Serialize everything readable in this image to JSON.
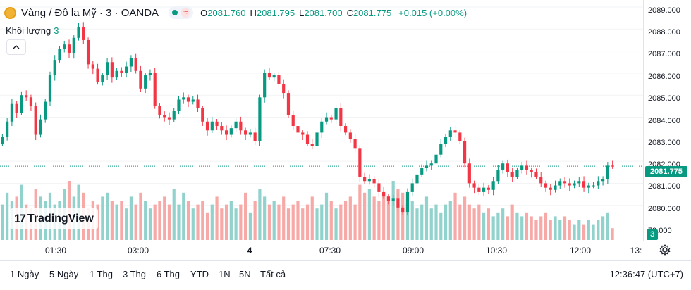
{
  "header": {
    "symbol_title": "Vàng / Đô la Mỹ · 3 · OANDA",
    "market_approx_symbol": "≈",
    "ohlc": [
      {
        "k": "O",
        "v": "2081.760"
      },
      {
        "k": "H",
        "v": "2081.795"
      },
      {
        "k": "L",
        "v": "2081.700"
      },
      {
        "k": "C",
        "v": "2081.775"
      }
    ],
    "change": "+0.015 (+0.00%)"
  },
  "volume_label": {
    "name": "Khối lượng",
    "value": "3"
  },
  "collapse_icon": "chevron-up-icon",
  "logo": {
    "mark": "17",
    "text": "TradingView"
  },
  "price_axis": {
    "ticks": [
      "2089.000",
      "2088.000",
      "2087.000",
      "2086.000",
      "2085.000",
      "2084.000",
      "2083.000",
      "2082.000",
      "2081.000",
      "2080.000",
      "79.000"
    ],
    "current_price": "2081.775",
    "volume_value": "3"
  },
  "time_axis": {
    "ticks": [
      {
        "label": "01:30",
        "bold": false
      },
      {
        "label": "03:00",
        "bold": false
      },
      {
        "label": "4",
        "bold": true
      },
      {
        "label": "07:30",
        "bold": false
      },
      {
        "label": "09:00",
        "bold": false
      },
      {
        "label": "10:30",
        "bold": false
      },
      {
        "label": "12:00",
        "bold": false
      },
      {
        "label": "13:",
        "bold": false
      }
    ]
  },
  "ranges": [
    "1 Ngày",
    "5 Ngày",
    "1 Thg",
    "3 Thg",
    "6 Thg",
    "YTD",
    "1N",
    "5N",
    "Tất cả"
  ],
  "clock": "12:36:47 (UTC+7)",
  "colors": {
    "up": "#089981",
    "down": "#f23645",
    "up_vol": "#92d2cc",
    "down_vol": "#f7a9a7"
  },
  "chart_data": {
    "type": "candlestick",
    "symbol": "Vàng / Đô la Mỹ",
    "interval": "3",
    "ylim": [
      2078.8,
      2089.2
    ],
    "x_ticks": [
      "01:30",
      "03:00",
      "4",
      "07:30",
      "09:00",
      "10:30",
      "12:00",
      "13:"
    ],
    "close": [
      2083.1,
      2083.8,
      2084.6,
      2084.2,
      2085.0,
      2084.9,
      2084.5,
      2083.2,
      2083.9,
      2084.7,
      2085.9,
      2086.6,
      2087.1,
      2087.3,
      2086.9,
      2087.6,
      2088.1,
      2087.5,
      2086.4,
      2086.2,
      2085.6,
      2085.9,
      2086.5,
      2085.8,
      2086.1,
      2086.0,
      2086.3,
      2086.7,
      2086.1,
      2085.3,
      2085.9,
      2086.0,
      2084.5,
      2084.1,
      2084.0,
      2083.9,
      2084.3,
      2084.8,
      2084.9,
      2084.7,
      2084.8,
      2084.4,
      2083.8,
      2083.4,
      2083.8,
      2083.6,
      2083.4,
      2083.2,
      2083.5,
      2083.8,
      2083.4,
      2083.2,
      2083.3,
      2082.9,
      2084.9,
      2086.0,
      2085.8,
      2085.9,
      2085.5,
      2085.1,
      2084.1,
      2083.6,
      2083.3,
      2083.2,
      2082.8,
      2082.7,
      2083.3,
      2083.8,
      2084.0,
      2083.9,
      2084.4,
      2083.6,
      2083.3,
      2083.0,
      2082.6,
      2081.3,
      2081.1,
      2081.2,
      2081.0,
      2080.6,
      2080.4,
      2080.2,
      2080.3,
      2079.9,
      2079.7,
      2080.6,
      2081.0,
      2081.4,
      2081.7,
      2081.8,
      2081.9,
      2082.3,
      2082.8,
      2083.1,
      2083.4,
      2083.3,
      2082.9,
      2081.9,
      2081.0,
      2080.8,
      2080.6,
      2080.8,
      2080.7,
      2081.1,
      2081.6,
      2081.9,
      2081.5,
      2081.3,
      2081.6,
      2081.8,
      2081.6,
      2081.5,
      2081.3,
      2081.0,
      2080.8,
      2080.7,
      2080.9,
      2081.1,
      2081.0,
      2080.9,
      2081.0,
      2081.1,
      2080.8,
      2080.9,
      2080.9,
      2081.1,
      2081.2,
      2081.8,
      2081.775
    ],
    "volume": [
      9,
      12,
      10,
      11,
      14,
      9,
      8,
      13,
      11,
      10,
      12,
      9,
      10,
      13,
      15,
      11,
      14,
      12,
      8,
      10,
      9,
      11,
      12,
      10,
      9,
      10,
      8,
      11,
      9,
      12,
      10,
      8,
      9,
      10,
      11,
      9,
      13,
      9,
      12,
      10,
      8,
      9,
      10,
      7,
      9,
      11,
      8,
      9,
      10,
      8,
      9,
      12,
      7,
      10,
      13,
      11,
      9,
      10,
      9,
      11,
      8,
      9,
      10,
      8,
      9,
      11,
      8,
      9,
      12,
      10,
      8,
      9,
      10,
      11,
      9,
      14,
      12,
      13,
      11,
      10,
      12,
      11,
      15,
      13,
      12,
      9,
      10,
      8,
      9,
      11,
      8,
      9,
      7,
      9,
      10,
      12,
      9,
      11,
      9,
      8,
      9,
      7,
      8,
      6,
      7,
      8,
      6,
      9,
      7,
      6,
      7,
      6,
      5,
      6,
      7,
      5,
      6,
      5,
      6,
      5,
      4,
      5,
      4,
      5,
      4,
      5,
      6,
      7,
      3
    ]
  }
}
